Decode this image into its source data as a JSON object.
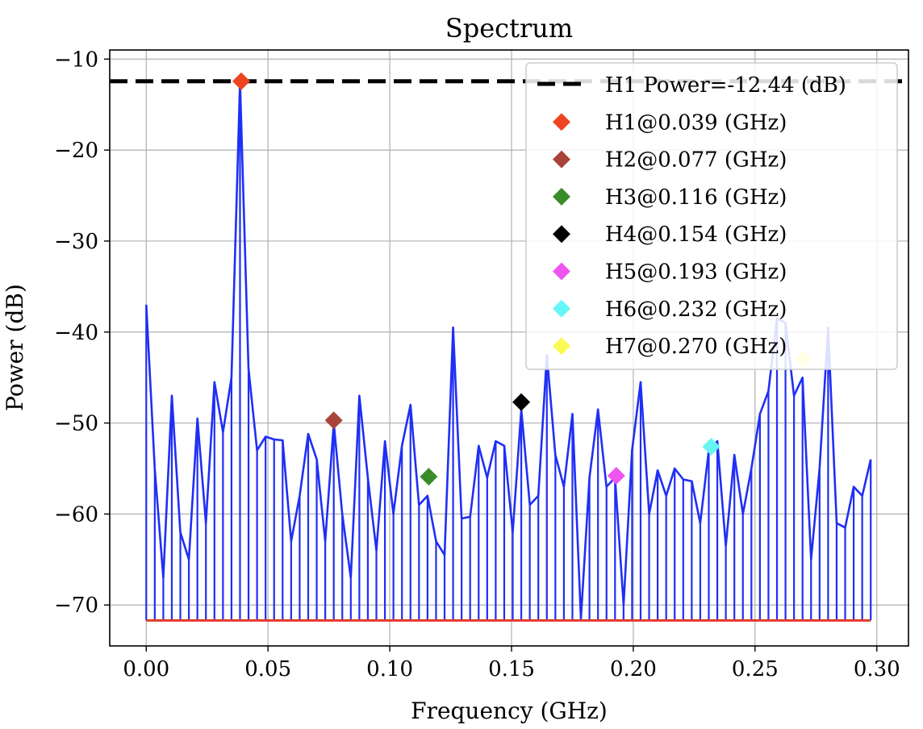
{
  "chart_data": {
    "type": "line",
    "title": "Spectrum",
    "xlabel": "Frequency (GHz)",
    "ylabel": "Power (dB)",
    "xlim": [
      -0.015,
      0.313
    ],
    "ylim": [
      -74.5,
      -9.0
    ],
    "xticks": [
      0.0,
      0.05,
      0.1,
      0.15,
      0.2,
      0.25,
      0.3
    ],
    "xtick_labels": [
      "0.00",
      "0.05",
      "0.10",
      "0.15",
      "0.20",
      "0.25",
      "0.30"
    ],
    "yticks": [
      -70,
      -60,
      -50,
      -40,
      -30,
      -20,
      -10
    ],
    "ytick_labels": [
      "−70",
      "−60",
      "−50",
      "−40",
      "−30",
      "−20",
      "−10"
    ],
    "grid": true,
    "legend_position": "top-right",
    "stem_baseline": -71.7,
    "colors": {
      "spectrum": "#1f2ff5",
      "baseline": "#e03b2b",
      "threshold": "#000000",
      "grid": "#b0b0b0"
    },
    "spectrum": {
      "x": [
        0.0,
        0.0035,
        0.007,
        0.0105,
        0.014,
        0.0175,
        0.021,
        0.0245,
        0.028,
        0.0315,
        0.035,
        0.0385,
        0.042,
        0.0455,
        0.049,
        0.0525,
        0.056,
        0.0595,
        0.063,
        0.0665,
        0.07,
        0.0735,
        0.077,
        0.0805,
        0.084,
        0.0875,
        0.091,
        0.0945,
        0.098,
        0.1015,
        0.105,
        0.1085,
        0.112,
        0.1155,
        0.119,
        0.1225,
        0.126,
        0.1295,
        0.133,
        0.1365,
        0.14,
        0.1435,
        0.147,
        0.1505,
        0.154,
        0.1575,
        0.161,
        0.1645,
        0.168,
        0.1715,
        0.175,
        0.1785,
        0.182,
        0.1855,
        0.189,
        0.1925,
        0.196,
        0.1995,
        0.203,
        0.2065,
        0.21,
        0.2135,
        0.217,
        0.2205,
        0.224,
        0.2275,
        0.231,
        0.2345,
        0.238,
        0.2415,
        0.245,
        0.2485,
        0.252,
        0.2555,
        0.259,
        0.2625,
        0.266,
        0.2695,
        0.273,
        0.2765,
        0.28,
        0.2835,
        0.287,
        0.2905,
        0.294,
        0.2975
      ],
      "y": [
        -37.0,
        -55.0,
        -67.0,
        -47.0,
        -62.0,
        -65.0,
        -49.5,
        -61.0,
        -45.5,
        -51.0,
        -45.0,
        -12.5,
        -44.0,
        -53.0,
        -51.5,
        -51.8,
        -51.9,
        -63.0,
        -58.0,
        -51.2,
        -54.0,
        -63.0,
        -50.0,
        -60.0,
        -67.0,
        -47.0,
        -56.0,
        -64.0,
        -52.0,
        -60.0,
        -52.5,
        -48.0,
        -59.0,
        -58.0,
        -63.0,
        -64.5,
        -39.5,
        -60.5,
        -60.3,
        -52.5,
        -56.0,
        -52.0,
        -52.5,
        -62.0,
        -48.5,
        -59.0,
        -58.0,
        -42.5,
        -53.5,
        -57.0,
        -49.0,
        -71.5,
        -56.0,
        -48.5,
        -57.0,
        -56.0,
        -70.0,
        -53.0,
        -45.5,
        -60.0,
        -55.2,
        -58.0,
        -55.0,
        -56.2,
        -56.4,
        -61.0,
        -53.0,
        -52.0,
        -63.5,
        -53.5,
        -60.0,
        -55.0,
        -49.0,
        -46.5,
        -38.5,
        -39.0,
        -47.0,
        -45.0,
        -65.0,
        -55.0,
        -39.5,
        -61.0,
        -61.5,
        -57.0,
        -58.0,
        -54.0
      ]
    },
    "threshold": {
      "value": -12.44,
      "legend_label": "H1 Power=-12.44 (dB)"
    },
    "markers": [
      {
        "label": "H1@0.039 (GHz)",
        "x": 0.039,
        "y": -12.44,
        "color": "#ee4422"
      },
      {
        "label": "H2@0.077 (GHz)",
        "x": 0.077,
        "y": -49.7,
        "color": "#a8443a"
      },
      {
        "label": "H3@0.116 (GHz)",
        "x": 0.116,
        "y": -55.9,
        "color": "#3a8c2a"
      },
      {
        "label": "H4@0.154 (GHz)",
        "x": 0.154,
        "y": -47.7,
        "color": "#000000"
      },
      {
        "label": "H5@0.193 (GHz)",
        "x": 0.193,
        "y": -55.8,
        "color": "#ee55ee"
      },
      {
        "label": "H6@0.232 (GHz)",
        "x": 0.232,
        "y": -52.6,
        "color": "#66f6f6"
      },
      {
        "label": "H7@0.270 (GHz)",
        "x": 0.27,
        "y": -43.0,
        "color": "#fafa55"
      }
    ]
  }
}
